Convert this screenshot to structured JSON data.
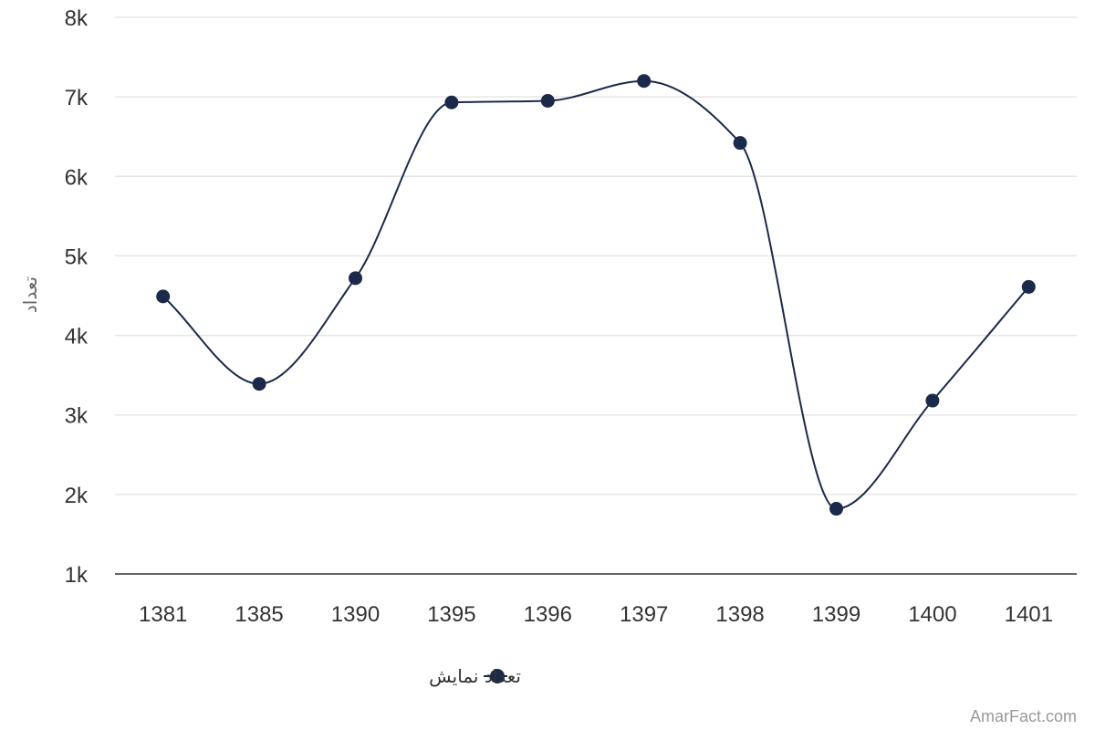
{
  "chart_data": {
    "type": "line",
    "smooth": true,
    "categories": [
      "1381",
      "1385",
      "1390",
      "1395",
      "1396",
      "1397",
      "1398",
      "1399",
      "1400",
      "1401"
    ],
    "series": [
      {
        "name": "تعداد نمایش",
        "values": [
          4490,
          3390,
          4720,
          6930,
          6950,
          7200,
          6420,
          1820,
          3180,
          4610
        ],
        "color": "#1b2a4a"
      }
    ],
    "ylabel": "تعداد",
    "xlabel": "",
    "ylim": [
      1000,
      8000
    ],
    "yticks": [
      1000,
      2000,
      3000,
      4000,
      5000,
      6000,
      7000,
      8000
    ],
    "ytick_labels": [
      "1k",
      "2k",
      "3k",
      "4k",
      "5k",
      "6k",
      "7k",
      "8k"
    ],
    "grid": true,
    "legend_position": "bottom-center"
  },
  "credit": "AmarFact.com",
  "colors": {
    "series": "#1b2a4a",
    "grid": "#e6e6e6",
    "axis_line": "#333333",
    "text": "#333333",
    "axis_title": "#666666",
    "credit": "#999999"
  }
}
